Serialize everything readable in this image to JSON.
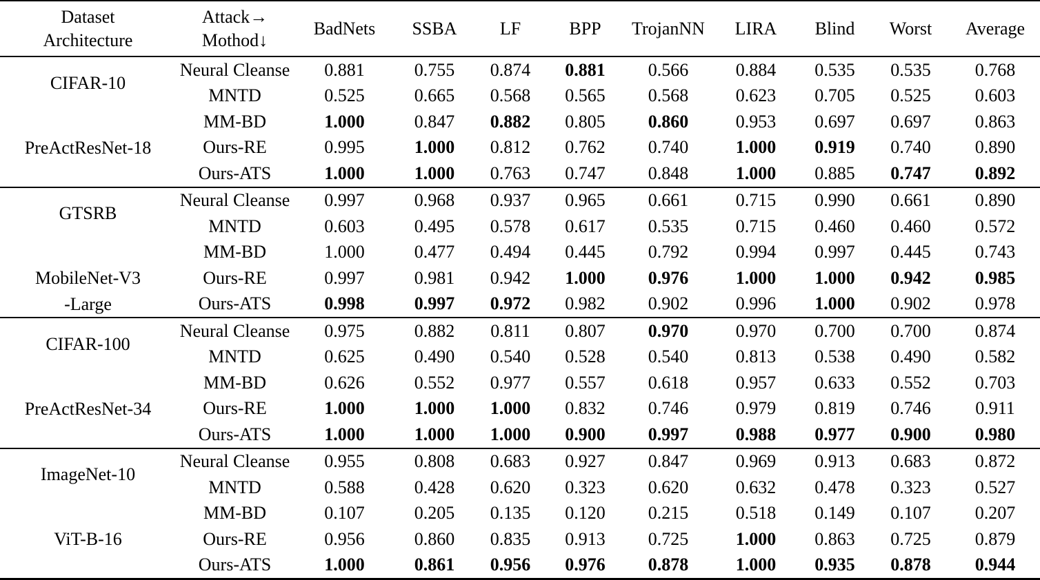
{
  "colors": {
    "background": "#ffffff",
    "text": "#000000",
    "rule": "#000000"
  },
  "table": {
    "header": {
      "dataset_architecture": [
        "Dataset",
        "Architecture"
      ],
      "attack_method": [
        "Attack→",
        "Mothod↓"
      ],
      "attacks": [
        "BadNets",
        "SSBA",
        "LF",
        "BPP",
        "TrojanNN",
        "LIRA",
        "Blind",
        "Worst",
        "Average"
      ]
    },
    "groups": [
      {
        "dataset": "CIFAR-10",
        "architecture": [
          "PreActResNet-18"
        ],
        "rows": [
          {
            "method": "Neural Cleanse",
            "values": [
              "0.881",
              "0.755",
              "0.874",
              "0.881",
              "0.566",
              "0.884",
              "0.535",
              "0.535",
              "0.768"
            ],
            "bold": [
              false,
              false,
              false,
              true,
              false,
              false,
              false,
              false,
              false
            ]
          },
          {
            "method": "MNTD",
            "values": [
              "0.525",
              "0.665",
              "0.568",
              "0.565",
              "0.568",
              "0.623",
              "0.705",
              "0.525",
              "0.603"
            ],
            "bold": [
              false,
              false,
              false,
              false,
              false,
              false,
              false,
              false,
              false
            ]
          },
          {
            "method": "MM-BD",
            "values": [
              "1.000",
              "0.847",
              "0.882",
              "0.805",
              "0.860",
              "0.953",
              "0.697",
              "0.697",
              "0.863"
            ],
            "bold": [
              true,
              false,
              true,
              false,
              true,
              false,
              false,
              false,
              false
            ]
          },
          {
            "method": "Ours-RE",
            "values": [
              "0.995",
              "1.000",
              "0.812",
              "0.762",
              "0.740",
              "1.000",
              "0.919",
              "0.740",
              "0.890"
            ],
            "bold": [
              false,
              true,
              false,
              false,
              false,
              true,
              true,
              false,
              false
            ]
          },
          {
            "method": "Ours-ATS",
            "values": [
              "1.000",
              "1.000",
              "0.763",
              "0.747",
              "0.848",
              "1.000",
              "0.885",
              "0.747",
              "0.892"
            ],
            "bold": [
              true,
              true,
              false,
              false,
              false,
              true,
              false,
              true,
              true
            ]
          }
        ]
      },
      {
        "dataset": "GTSRB",
        "architecture": [
          "MobileNet-V3",
          "-Large"
        ],
        "rows": [
          {
            "method": "Neural Cleanse",
            "values": [
              "0.997",
              "0.968",
              "0.937",
              "0.965",
              "0.661",
              "0.715",
              "0.990",
              "0.661",
              "0.890"
            ],
            "bold": [
              false,
              false,
              false,
              false,
              false,
              false,
              false,
              false,
              false
            ]
          },
          {
            "method": "MNTD",
            "values": [
              "0.603",
              "0.495",
              "0.578",
              "0.617",
              "0.535",
              "0.715",
              "0.460",
              "0.460",
              "0.572"
            ],
            "bold": [
              false,
              false,
              false,
              false,
              false,
              false,
              false,
              false,
              false
            ]
          },
          {
            "method": "MM-BD",
            "values": [
              "1.000",
              "0.477",
              "0.494",
              "0.445",
              "0.792",
              "0.994",
              "0.997",
              "0.445",
              "0.743"
            ],
            "bold": [
              false,
              false,
              false,
              false,
              false,
              false,
              false,
              false,
              false
            ]
          },
          {
            "method": "Ours-RE",
            "values": [
              "0.997",
              "0.981",
              "0.942",
              "1.000",
              "0.976",
              "1.000",
              "1.000",
              "0.942",
              "0.985"
            ],
            "bold": [
              false,
              false,
              false,
              true,
              true,
              true,
              true,
              true,
              true
            ]
          },
          {
            "method": "Ours-ATS",
            "values": [
              "0.998",
              "0.997",
              "0.972",
              "0.982",
              "0.902",
              "0.996",
              "1.000",
              "0.902",
              "0.978"
            ],
            "bold": [
              true,
              true,
              true,
              false,
              false,
              false,
              true,
              false,
              false
            ]
          }
        ]
      },
      {
        "dataset": "CIFAR-100",
        "architecture": [
          "PreActResNet-34"
        ],
        "rows": [
          {
            "method": "Neural Cleanse",
            "values": [
              "0.975",
              "0.882",
              "0.811",
              "0.807",
              "0.970",
              "0.970",
              "0.700",
              "0.700",
              "0.874"
            ],
            "bold": [
              false,
              false,
              false,
              false,
              true,
              false,
              false,
              false,
              false
            ]
          },
          {
            "method": "MNTD",
            "values": [
              "0.625",
              "0.490",
              "0.540",
              "0.528",
              "0.540",
              "0.813",
              "0.538",
              "0.490",
              "0.582"
            ],
            "bold": [
              false,
              false,
              false,
              false,
              false,
              false,
              false,
              false,
              false
            ]
          },
          {
            "method": "MM-BD",
            "values": [
              "0.626",
              "0.552",
              "0.977",
              "0.557",
              "0.618",
              "0.957",
              "0.633",
              "0.552",
              "0.703"
            ],
            "bold": [
              false,
              false,
              false,
              false,
              false,
              false,
              false,
              false,
              false
            ]
          },
          {
            "method": "Ours-RE",
            "values": [
              "1.000",
              "1.000",
              "1.000",
              "0.832",
              "0.746",
              "0.979",
              "0.819",
              "0.746",
              "0.911"
            ],
            "bold": [
              true,
              true,
              true,
              false,
              false,
              false,
              false,
              false,
              false
            ]
          },
          {
            "method": "Ours-ATS",
            "values": [
              "1.000",
              "1.000",
              "1.000",
              "0.900",
              "0.997",
              "0.988",
              "0.977",
              "0.900",
              "0.980"
            ],
            "bold": [
              true,
              true,
              true,
              true,
              true,
              true,
              true,
              true,
              true
            ]
          }
        ]
      },
      {
        "dataset": "ImageNet-10",
        "architecture": [
          "ViT-B-16"
        ],
        "rows": [
          {
            "method": "Neural Cleanse",
            "values": [
              "0.955",
              "0.808",
              "0.683",
              "0.927",
              "0.847",
              "0.969",
              "0.913",
              "0.683",
              "0.872"
            ],
            "bold": [
              false,
              false,
              false,
              false,
              false,
              false,
              false,
              false,
              false
            ]
          },
          {
            "method": "MNTD",
            "values": [
              "0.588",
              "0.428",
              "0.620",
              "0.323",
              "0.620",
              "0.632",
              "0.478",
              "0.323",
              "0.527"
            ],
            "bold": [
              false,
              false,
              false,
              false,
              false,
              false,
              false,
              false,
              false
            ]
          },
          {
            "method": "MM-BD",
            "values": [
              "0.107",
              "0.205",
              "0.135",
              "0.120",
              "0.215",
              "0.518",
              "0.149",
              "0.107",
              "0.207"
            ],
            "bold": [
              false,
              false,
              false,
              false,
              false,
              false,
              false,
              false,
              false
            ]
          },
          {
            "method": "Ours-RE",
            "values": [
              "0.956",
              "0.860",
              "0.835",
              "0.913",
              "0.725",
              "1.000",
              "0.863",
              "0.725",
              "0.879"
            ],
            "bold": [
              false,
              false,
              false,
              false,
              false,
              true,
              false,
              false,
              false
            ]
          },
          {
            "method": "Ours-ATS",
            "values": [
              "1.000",
              "0.861",
              "0.956",
              "0.976",
              "0.878",
              "1.000",
              "0.935",
              "0.878",
              "0.944"
            ],
            "bold": [
              true,
              true,
              true,
              true,
              true,
              true,
              true,
              true,
              true
            ]
          }
        ]
      }
    ]
  }
}
